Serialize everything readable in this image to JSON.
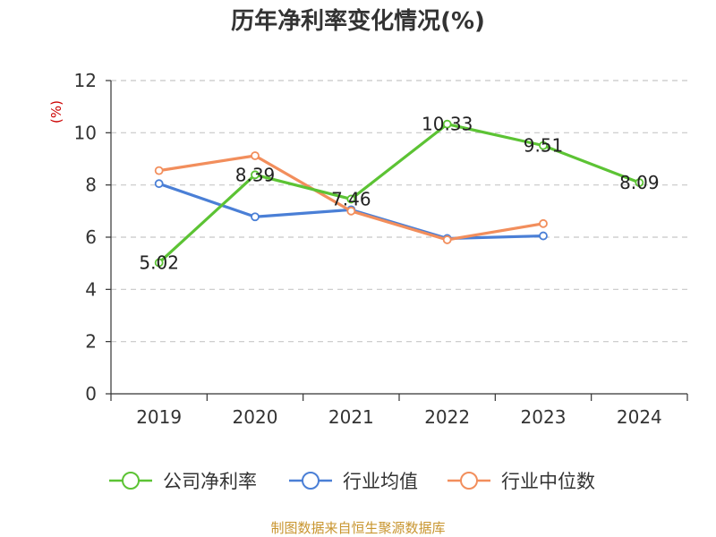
{
  "chart_data": {
    "type": "line",
    "title": "历年净利率变化情况(%)",
    "ylabel": "(%)",
    "ylim": [
      0,
      12
    ],
    "yticks": [
      0,
      2,
      4,
      6,
      8,
      10,
      12
    ],
    "categories": [
      "2019",
      "2020",
      "2021",
      "2022",
      "2023",
      "2024"
    ],
    "grid": true,
    "legend_position": "bottom",
    "series": [
      {
        "name": "公司净利率",
        "color": "#5cc334",
        "values": [
          5.02,
          8.39,
          7.46,
          10.33,
          9.51,
          8.09
        ],
        "labels": [
          "5.02",
          "8.39",
          "7.46",
          "10.33",
          "9.51",
          "8.09"
        ]
      },
      {
        "name": "行业均值",
        "color": "#4a7fd6",
        "values": [
          8.05,
          6.78,
          7.05,
          5.95,
          6.05,
          null
        ]
      },
      {
        "name": "行业中位数",
        "color": "#f28e5c",
        "values": [
          8.55,
          9.12,
          7.0,
          5.9,
          6.52,
          null
        ]
      }
    ],
    "source": "制图数据来自恒生聚源数据库"
  }
}
